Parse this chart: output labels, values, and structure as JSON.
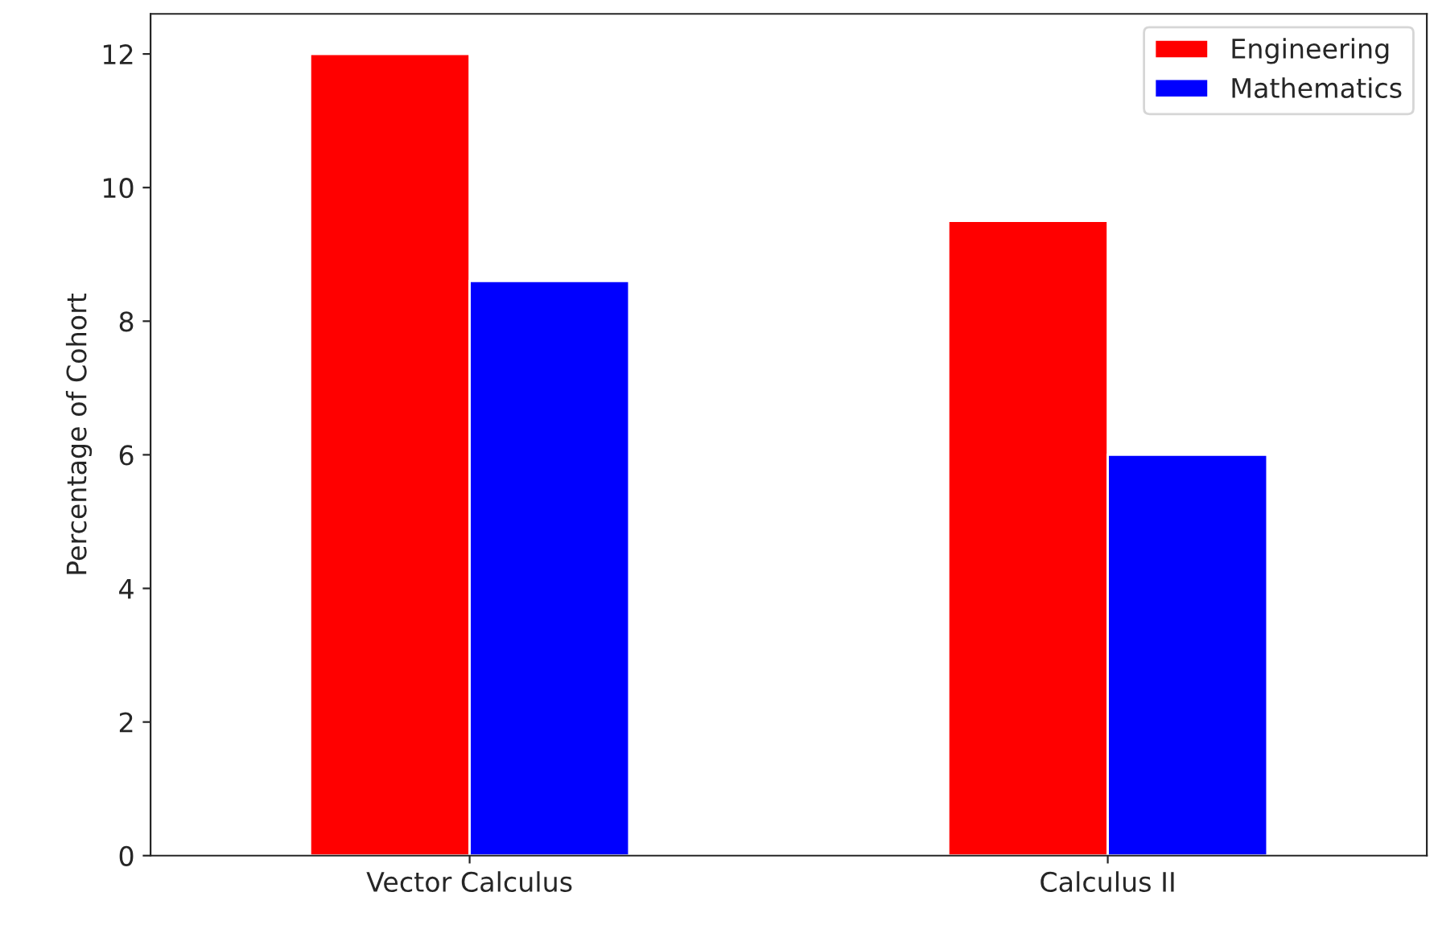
{
  "chart_data": {
    "type": "bar",
    "ylabel": "Percentage of Cohort",
    "categories": [
      "Vector Calculus",
      "Calculus II"
    ],
    "series": [
      {
        "name": "Engineering",
        "color": "#ff0000",
        "values": [
          12.0,
          9.5
        ]
      },
      {
        "name": "Mathematics",
        "color": "#0000ff",
        "values": [
          8.6,
          6.0
        ]
      }
    ],
    "ylim": [
      0,
      12.6
    ],
    "yticks": [
      0,
      2,
      4,
      6,
      8,
      10,
      12
    ],
    "legend": "top right",
    "grid": false
  }
}
